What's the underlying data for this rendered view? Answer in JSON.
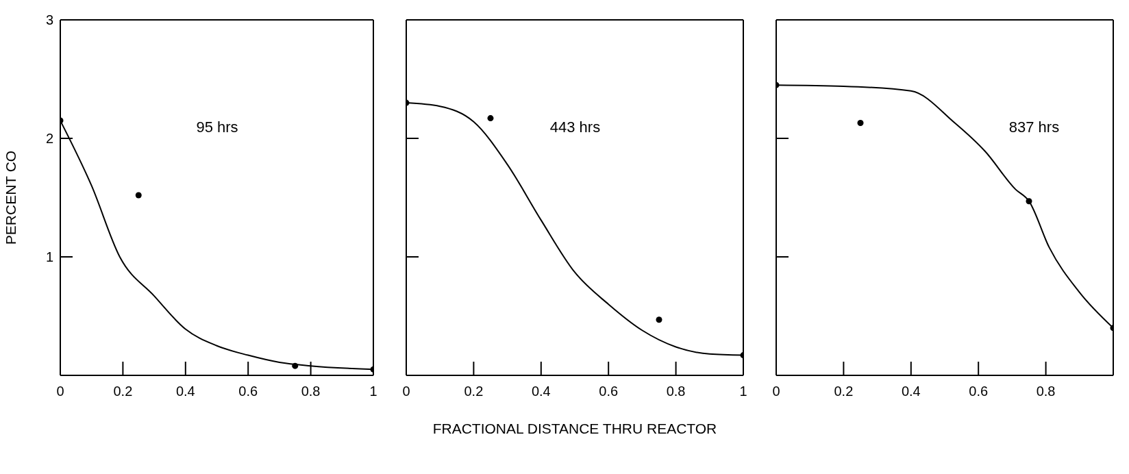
{
  "chart_data": [
    {
      "type": "scatter",
      "ylabel": "PERCENT CO",
      "annotations": [
        "95 hrs"
      ],
      "xlim": [
        0,
        1
      ],
      "ylim": [
        0,
        3
      ],
      "xticks": [
        0,
        0.2,
        0.4,
        0.6,
        0.8,
        1
      ],
      "yticks": [
        1,
        2,
        3
      ],
      "series": [
        {
          "type": "line",
          "color": "#000000",
          "line_style": "solid",
          "marker": "none",
          "x": [
            0,
            0.1,
            0.19,
            0.3,
            0.4,
            0.5,
            0.6,
            0.7,
            0.8,
            1
          ],
          "values": [
            2.15,
            1.6,
            1.0,
            0.67,
            0.39,
            0.25,
            0.17,
            0.11,
            0.08,
            0.05
          ]
        },
        {
          "type": "scatter",
          "color": "#000000",
          "marker": "circle",
          "x": [
            0,
            0.25,
            0.75,
            1
          ],
          "values": [
            2.15,
            1.52,
            0.08,
            0.05
          ]
        }
      ]
    },
    {
      "type": "scatter",
      "xlabel": "FRACTIONAL DISTANCE THRU REACTOR",
      "annotations": [
        "443 hrs"
      ],
      "xlim": [
        0,
        1
      ],
      "ylim": [
        0,
        3
      ],
      "xticks": [
        0,
        0.2,
        0.4,
        0.6,
        0.8,
        1
      ],
      "yticks": [
        1,
        2
      ],
      "tick_labels": "x",
      "series": [
        {
          "type": "line",
          "color": "#000000",
          "line_style": "solid",
          "marker": "none",
          "x": [
            0,
            0.1,
            0.2,
            0.3,
            0.4,
            0.5,
            0.6,
            0.7,
            0.8,
            0.9,
            1
          ],
          "values": [
            2.3,
            2.27,
            2.14,
            1.78,
            1.31,
            0.87,
            0.6,
            0.38,
            0.24,
            0.18,
            0.17
          ]
        },
        {
          "type": "scatter",
          "color": "#000000",
          "marker": "circle",
          "x": [
            0,
            0.25,
            0.75,
            1
          ],
          "values": [
            2.3,
            2.17,
            0.47,
            0.17
          ]
        }
      ]
    },
    {
      "type": "scatter",
      "annotations": [
        "837 hrs"
      ],
      "xlim": [
        0,
        1
      ],
      "ylim": [
        0,
        3
      ],
      "xticks": [
        0,
        0.2,
        0.4,
        0.6,
        0.8
      ],
      "yticks": [
        1,
        2
      ],
      "tick_labels": "x",
      "series": [
        {
          "type": "line",
          "color": "#000000",
          "line_style": "solid",
          "marker": "none",
          "x": [
            0,
            0.2,
            0.4,
            0.53,
            0.62,
            0.71,
            0.75,
            0.81,
            0.9,
            1
          ],
          "values": [
            2.45,
            2.44,
            2.4,
            2.13,
            1.89,
            1.57,
            1.47,
            1.08,
            0.7,
            0.4
          ]
        },
        {
          "type": "scatter",
          "color": "#000000",
          "marker": "circle",
          "x": [
            0,
            0.25,
            0.75,
            1
          ],
          "values": [
            2.45,
            2.13,
            1.47,
            0.4
          ]
        }
      ]
    }
  ]
}
